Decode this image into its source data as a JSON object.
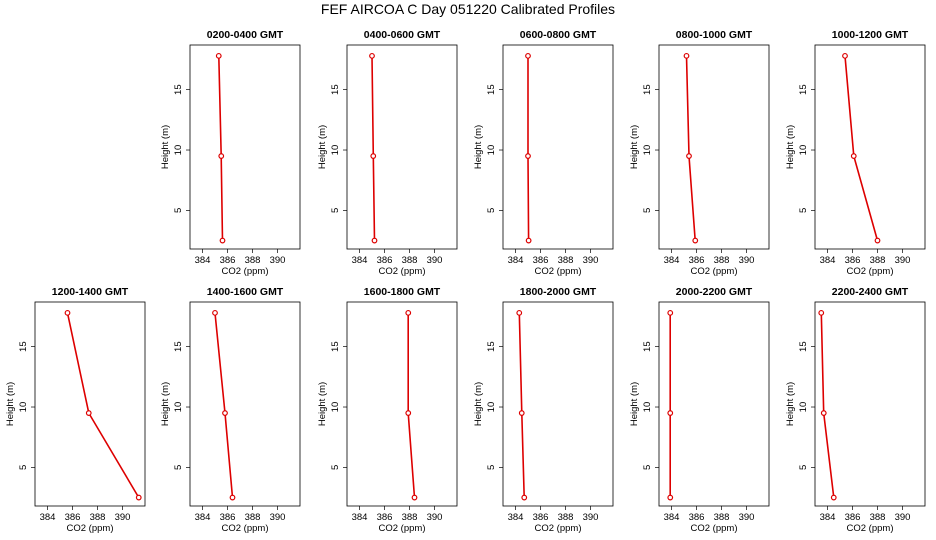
{
  "title": "FEF AIRCOA C  Day 051220  Calibrated Profiles",
  "colors": {
    "series": "#dd0000",
    "frame": "#000000"
  },
  "chart_data": [
    {
      "type": "line",
      "title": "0200-0400 GMT",
      "xlabel": "CO2 (ppm)",
      "ylabel": "Height (m)",
      "xlim": [
        383,
        391.8
      ],
      "ylim": [
        1.8,
        18.7
      ],
      "xticks": [
        384,
        386,
        388,
        390
      ],
      "yticks": [
        5,
        10,
        15
      ],
      "grid": false,
      "series": [
        {
          "x": [
            385.3,
            385.5,
            385.6
          ],
          "y": [
            17.8,
            9.5,
            2.5
          ]
        }
      ]
    },
    {
      "type": "line",
      "title": "0400-0600 GMT",
      "xlabel": "CO2 (ppm)",
      "ylabel": "Height (m)",
      "xlim": [
        383,
        391.8
      ],
      "ylim": [
        1.8,
        18.7
      ],
      "xticks": [
        384,
        386,
        388,
        390
      ],
      "yticks": [
        5,
        10,
        15
      ],
      "grid": false,
      "series": [
        {
          "x": [
            385.0,
            385.1,
            385.2
          ],
          "y": [
            17.8,
            9.5,
            2.5
          ]
        }
      ]
    },
    {
      "type": "line",
      "title": "0600-0800 GMT",
      "xlabel": "CO2 (ppm)",
      "ylabel": "Height (m)",
      "xlim": [
        383,
        391.8
      ],
      "ylim": [
        1.8,
        18.7
      ],
      "xticks": [
        384,
        386,
        388,
        390
      ],
      "yticks": [
        5,
        10,
        15
      ],
      "grid": false,
      "series": [
        {
          "x": [
            385.0,
            385.0,
            385.05
          ],
          "y": [
            17.8,
            9.5,
            2.5
          ]
        }
      ]
    },
    {
      "type": "line",
      "title": "0800-1000 GMT",
      "xlabel": "CO2 (ppm)",
      "ylabel": "Height (m)",
      "xlim": [
        383,
        391.8
      ],
      "ylim": [
        1.8,
        18.7
      ],
      "xticks": [
        384,
        386,
        388,
        390
      ],
      "yticks": [
        5,
        10,
        15
      ],
      "grid": false,
      "series": [
        {
          "x": [
            385.2,
            385.4,
            385.9
          ],
          "y": [
            17.8,
            9.5,
            2.5
          ]
        }
      ]
    },
    {
      "type": "line",
      "title": "1000-1200 GMT",
      "xlabel": "CO2 (ppm)",
      "ylabel": "Height (m)",
      "xlim": [
        383,
        391.8
      ],
      "ylim": [
        1.8,
        18.7
      ],
      "xticks": [
        384,
        386,
        388,
        390
      ],
      "yticks": [
        5,
        10,
        15
      ],
      "grid": false,
      "series": [
        {
          "x": [
            385.4,
            386.1,
            388.0
          ],
          "y": [
            17.8,
            9.5,
            2.5
          ]
        }
      ]
    },
    {
      "type": "line",
      "title": "1200-1400 GMT",
      "xlabel": "CO2 (ppm)",
      "ylabel": "Height (m)",
      "xlim": [
        383,
        391.8
      ],
      "ylim": [
        1.8,
        18.7
      ],
      "xticks": [
        384,
        386,
        388,
        390
      ],
      "yticks": [
        5,
        10,
        15
      ],
      "grid": false,
      "series": [
        {
          "x": [
            385.6,
            387.3,
            391.3
          ],
          "y": [
            17.8,
            9.5,
            2.5
          ]
        }
      ]
    },
    {
      "type": "line",
      "title": "1400-1600 GMT",
      "xlabel": "CO2 (ppm)",
      "ylabel": "Height (m)",
      "xlim": [
        383,
        391.8
      ],
      "ylim": [
        1.8,
        18.7
      ],
      "xticks": [
        384,
        386,
        388,
        390
      ],
      "yticks": [
        5,
        10,
        15
      ],
      "grid": false,
      "series": [
        {
          "x": [
            385.0,
            385.8,
            386.4
          ],
          "y": [
            17.8,
            9.5,
            2.5
          ]
        }
      ]
    },
    {
      "type": "line",
      "title": "1600-1800 GMT",
      "xlabel": "CO2 (ppm)",
      "ylabel": "Height (m)",
      "xlim": [
        383,
        391.8
      ],
      "ylim": [
        1.8,
        18.7
      ],
      "xticks": [
        384,
        386,
        388,
        390
      ],
      "yticks": [
        5,
        10,
        15
      ],
      "grid": false,
      "series": [
        {
          "x": [
            387.9,
            387.9,
            388.4
          ],
          "y": [
            17.8,
            9.5,
            2.5
          ]
        }
      ]
    },
    {
      "type": "line",
      "title": "1800-2000 GMT",
      "xlabel": "CO2 (ppm)",
      "ylabel": "Height (m)",
      "xlim": [
        383,
        391.8
      ],
      "ylim": [
        1.8,
        18.7
      ],
      "xticks": [
        384,
        386,
        388,
        390
      ],
      "yticks": [
        5,
        10,
        15
      ],
      "grid": false,
      "series": [
        {
          "x": [
            384.3,
            384.5,
            384.7
          ],
          "y": [
            17.8,
            9.5,
            2.5
          ]
        }
      ]
    },
    {
      "type": "line",
      "title": "2000-2200 GMT",
      "xlabel": "CO2 (ppm)",
      "ylabel": "Height (m)",
      "xlim": [
        383,
        391.8
      ],
      "ylim": [
        1.8,
        18.7
      ],
      "xticks": [
        384,
        386,
        388,
        390
      ],
      "yticks": [
        5,
        10,
        15
      ],
      "grid": false,
      "series": [
        {
          "x": [
            383.9,
            383.9,
            383.9
          ],
          "y": [
            17.8,
            9.5,
            2.5
          ]
        }
      ]
    },
    {
      "type": "line",
      "title": "2200-2400 GMT",
      "xlabel": "CO2 (ppm)",
      "ylabel": "Height (m)",
      "xlim": [
        383,
        391.8
      ],
      "ylim": [
        1.8,
        18.7
      ],
      "xticks": [
        384,
        386,
        388,
        390
      ],
      "yticks": [
        5,
        10,
        15
      ],
      "grid": false,
      "series": [
        {
          "x": [
            383.5,
            383.7,
            384.5
          ],
          "y": [
            17.8,
            9.5,
            2.5
          ]
        }
      ]
    }
  ]
}
